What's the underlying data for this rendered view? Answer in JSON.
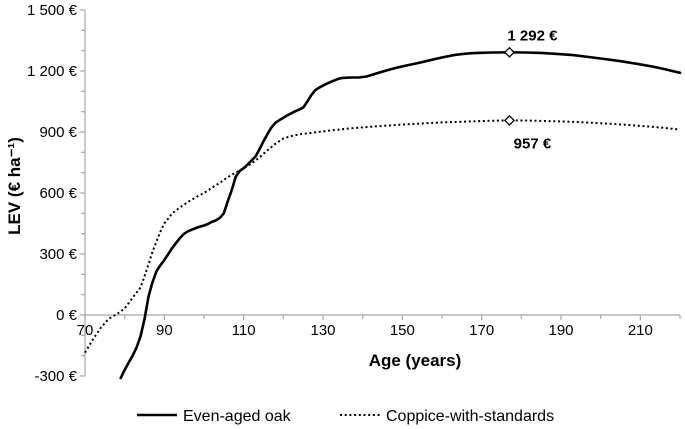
{
  "chart_data": {
    "type": "line",
    "title": "",
    "xlabel": "Age (years)",
    "ylabel": "LEV (€ ha⁻¹)",
    "x_range": [
      70,
      220
    ],
    "y_range": [
      -300,
      1500
    ],
    "x_minor_tick_step": 10,
    "y_minor_tick_step": 100,
    "grid": "off",
    "legend_position": "bottom-center",
    "axis_color": "#a6a6a6",
    "line_color": "#000000",
    "x_ticks": [
      {
        "value": 70,
        "label": "70"
      },
      {
        "value": 90,
        "label": "90"
      },
      {
        "value": 110,
        "label": "110"
      },
      {
        "value": 130,
        "label": "130"
      },
      {
        "value": 150,
        "label": "150"
      },
      {
        "value": 170,
        "label": "170"
      },
      {
        "value": 190,
        "label": "190"
      },
      {
        "value": 210,
        "label": "210"
      }
    ],
    "y_ticks": [
      {
        "value": 1500,
        "label": "1 500 €"
      },
      {
        "value": 1200,
        "label": "1 200 €"
      },
      {
        "value": 900,
        "label": "900 €"
      },
      {
        "value": 600,
        "label": "600 €"
      },
      {
        "value": 300,
        "label": "300 €"
      },
      {
        "value": 0,
        "label": "0 €"
      },
      {
        "value": -300,
        "label": "-300 €"
      }
    ],
    "series": [
      {
        "name": "Even-aged oak",
        "style": "solid",
        "color": "#000000",
        "marker": {
          "age": 177,
          "value": 1292
        },
        "annotation": {
          "text": "1 292 €",
          "position": "above"
        },
        "points": [
          [
            79,
            -310
          ],
          [
            80,
            -270
          ],
          [
            81,
            -235
          ],
          [
            82,
            -200
          ],
          [
            83,
            -160
          ],
          [
            84,
            -105
          ],
          [
            85,
            -20
          ],
          [
            86,
            90
          ],
          [
            87,
            160
          ],
          [
            88,
            215
          ],
          [
            89,
            245
          ],
          [
            90,
            270
          ],
          [
            91,
            300
          ],
          [
            92,
            330
          ],
          [
            93,
            355
          ],
          [
            94,
            380
          ],
          [
            95,
            400
          ],
          [
            96,
            412
          ],
          [
            97,
            420
          ],
          [
            98,
            428
          ],
          [
            99,
            435
          ],
          [
            100,
            440
          ],
          [
            101,
            448
          ],
          [
            102,
            458
          ],
          [
            103,
            465
          ],
          [
            104,
            478
          ],
          [
            105,
            500
          ],
          [
            106,
            560
          ],
          [
            107,
            615
          ],
          [
            108,
            680
          ],
          [
            109,
            708
          ],
          [
            110,
            722
          ],
          [
            111,
            740
          ],
          [
            112,
            760
          ],
          [
            113,
            780
          ],
          [
            114,
            815
          ],
          [
            115,
            855
          ],
          [
            116,
            890
          ],
          [
            117,
            922
          ],
          [
            118,
            945
          ],
          [
            119,
            958
          ],
          [
            120,
            970
          ],
          [
            121,
            982
          ],
          [
            122,
            992
          ],
          [
            123,
            1002
          ],
          [
            124,
            1010
          ],
          [
            125,
            1020
          ],
          [
            126,
            1048
          ],
          [
            127,
            1080
          ],
          [
            128,
            1105
          ],
          [
            129,
            1118
          ],
          [
            130,
            1128
          ],
          [
            131,
            1138
          ],
          [
            132,
            1147
          ],
          [
            133,
            1155
          ],
          [
            134,
            1162
          ],
          [
            135,
            1166
          ],
          [
            137,
            1168
          ],
          [
            139,
            1168
          ],
          [
            141,
            1173
          ],
          [
            143,
            1185
          ],
          [
            145,
            1197
          ],
          [
            147,
            1208
          ],
          [
            149,
            1218
          ],
          [
            151,
            1227
          ],
          [
            153,
            1235
          ],
          [
            155,
            1244
          ],
          [
            157,
            1253
          ],
          [
            159,
            1262
          ],
          [
            161,
            1271
          ],
          [
            163,
            1278
          ],
          [
            165,
            1283
          ],
          [
            167,
            1287
          ],
          [
            169,
            1289
          ],
          [
            171,
            1290
          ],
          [
            173,
            1291
          ],
          [
            177,
            1292
          ],
          [
            181,
            1291
          ],
          [
            185,
            1289
          ],
          [
            189,
            1284
          ],
          [
            193,
            1278
          ],
          [
            197,
            1269
          ],
          [
            201,
            1259
          ],
          [
            205,
            1248
          ],
          [
            209,
            1236
          ],
          [
            213,
            1222
          ],
          [
            216,
            1210
          ],
          [
            220,
            1191
          ]
        ]
      },
      {
        "name": "Coppice-with-standards",
        "style": "dotted",
        "color": "#000000",
        "marker": {
          "age": 177,
          "value": 957
        },
        "annotation": {
          "text": "957 €",
          "position": "below"
        },
        "points": [
          [
            70,
            -185
          ],
          [
            72,
            -120
          ],
          [
            74,
            -62
          ],
          [
            76,
            -18
          ],
          [
            78,
            4
          ],
          [
            80,
            32
          ],
          [
            82,
            85
          ],
          [
            84,
            135
          ],
          [
            85,
            190
          ],
          [
            86,
            250
          ],
          [
            87,
            310
          ],
          [
            88,
            360
          ],
          [
            89,
            410
          ],
          [
            90,
            450
          ],
          [
            92,
            500
          ],
          [
            94,
            530
          ],
          [
            96,
            556
          ],
          [
            98,
            580
          ],
          [
            100,
            600
          ],
          [
            102,
            625
          ],
          [
            104,
            650
          ],
          [
            106,
            678
          ],
          [
            108,
            700
          ],
          [
            110,
            722
          ],
          [
            112,
            745
          ],
          [
            114,
            775
          ],
          [
            116,
            810
          ],
          [
            118,
            842
          ],
          [
            120,
            868
          ],
          [
            122,
            880
          ],
          [
            124,
            888
          ],
          [
            126,
            893
          ],
          [
            128,
            898
          ],
          [
            130,
            903
          ],
          [
            133,
            910
          ],
          [
            136,
            916
          ],
          [
            139,
            921
          ],
          [
            142,
            926
          ],
          [
            145,
            930
          ],
          [
            148,
            934
          ],
          [
            151,
            938
          ],
          [
            154,
            941
          ],
          [
            157,
            944
          ],
          [
            160,
            947
          ],
          [
            163,
            949
          ],
          [
            166,
            951
          ],
          [
            169,
            953
          ],
          [
            172,
            955
          ],
          [
            177,
            957
          ],
          [
            182,
            956
          ],
          [
            186,
            954
          ],
          [
            190,
            952
          ],
          [
            194,
            949
          ],
          [
            198,
            945
          ],
          [
            202,
            941
          ],
          [
            206,
            936
          ],
          [
            210,
            930
          ],
          [
            214,
            924
          ],
          [
            217,
            918
          ],
          [
            220,
            912
          ]
        ]
      }
    ]
  }
}
